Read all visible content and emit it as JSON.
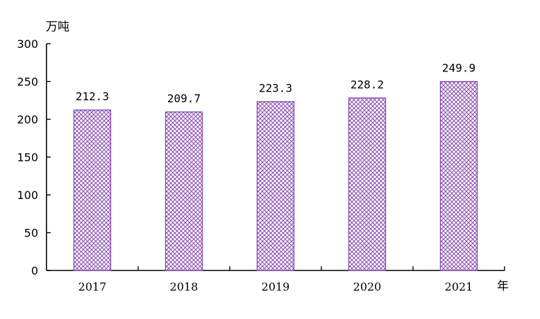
{
  "chart_data": {
    "type": "bar",
    "categories": [
      "2017",
      "2018",
      "2019",
      "2020",
      "2021"
    ],
    "values": [
      212.3,
      209.7,
      223.3,
      228.2,
      249.9
    ],
    "data_labels": [
      "212.3",
      "209.7",
      "223.3",
      "228.2",
      "249.9"
    ],
    "title": "",
    "xlabel": "年",
    "ylabel": "万吨",
    "ylim": [
      0,
      300
    ],
    "yticks": [
      0,
      50,
      100,
      150,
      200,
      250,
      300
    ],
    "grid": false,
    "legend": "none",
    "bar_fill_pattern": "crosshatch",
    "bar_color": "#8a4fb0"
  }
}
